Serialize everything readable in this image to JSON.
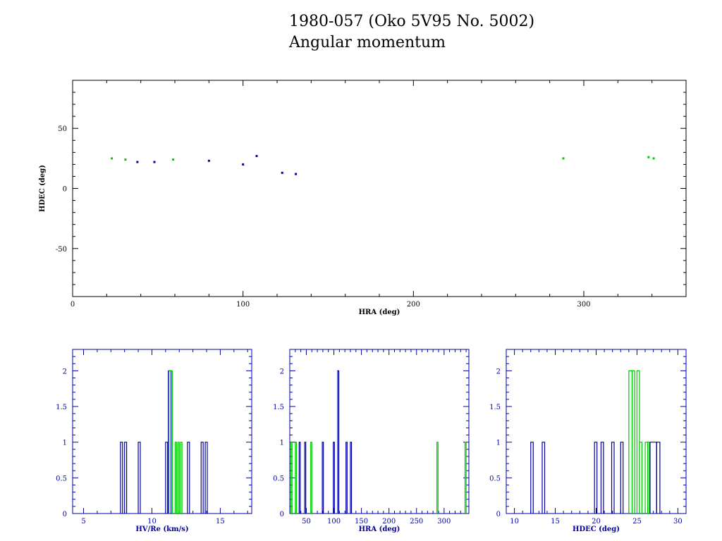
{
  "title_line1": "1980-057 (Oko 5V95 No. 5002)",
  "title_line2": "Angular momentum",
  "colors": {
    "blue": "#0000a0",
    "green": "#00c800",
    "black": "#000000"
  },
  "chart_data": [
    {
      "type": "scatter",
      "xlabel": "HRA (deg)",
      "ylabel": "HDEC (deg)",
      "xlim": [
        0,
        360
      ],
      "ylim": [
        -90,
        90
      ],
      "xticks": [
        0,
        100,
        200,
        300
      ],
      "yticks": [
        -50,
        0,
        50
      ],
      "series": [
        {
          "color": "green",
          "points": [
            [
              23,
              25
            ],
            [
              31,
              24
            ],
            [
              59,
              24
            ],
            [
              288,
              25
            ],
            [
              338,
              26
            ],
            [
              341,
              25
            ]
          ]
        },
        {
          "color": "blue",
          "points": [
            [
              38,
              22
            ],
            [
              48,
              22
            ],
            [
              80,
              23
            ],
            [
              100,
              20
            ],
            [
              108,
              27
            ],
            [
              123,
              13
            ],
            [
              131,
              12
            ]
          ]
        }
      ]
    },
    {
      "type": "histogram",
      "xlabel": "HV/Re (km/s)",
      "xlim": [
        4.2,
        17.3
      ],
      "ylim": [
        0,
        2.3
      ],
      "xticks": [
        5,
        10,
        15
      ],
      "yticks": [
        0,
        0.5,
        1,
        1.5,
        2
      ],
      "ytick_labels": [
        "0",
        "0.5",
        "1",
        "1.5",
        "2"
      ],
      "series": [
        {
          "color": "blue",
          "bins": [
            [
              7.7,
              7.85,
              1
            ],
            [
              8.0,
              8.15,
              1
            ],
            [
              9.0,
              9.15,
              1
            ],
            [
              11.0,
              11.15,
              1
            ],
            [
              11.2,
              11.4,
              2
            ],
            [
              12.6,
              12.75,
              1
            ],
            [
              13.6,
              13.75,
              1
            ],
            [
              13.9,
              14.05,
              1
            ]
          ]
        },
        {
          "color": "green",
          "bins": [
            [
              11.25,
              11.5,
              2
            ],
            [
              11.7,
              11.8,
              1
            ],
            [
              11.9,
              12.0,
              1
            ],
            [
              12.1,
              12.2,
              1
            ]
          ]
        }
      ]
    },
    {
      "type": "histogram",
      "xlabel": "HRA (deg)",
      "xlim": [
        20,
        345
      ],
      "ylim": [
        0,
        2.3
      ],
      "xticks": [
        50,
        100,
        150,
        200,
        250,
        300
      ],
      "yticks": [
        0,
        0.5,
        1,
        1.5,
        2
      ],
      "ytick_labels": [
        "0",
        "0.5",
        "1",
        "1.5",
        "2"
      ],
      "series": [
        {
          "color": "blue",
          "bins": [
            [
              37,
              39,
              1
            ],
            [
              47,
              49,
              1
            ],
            [
              79,
              81,
              1
            ],
            [
              99,
              101,
              1
            ],
            [
              107,
              109,
              2
            ],
            [
              122,
              124,
              1
            ],
            [
              130,
              132,
              1
            ]
          ]
        },
        {
          "color": "green",
          "bins": [
            [
              22,
              24,
              1
            ],
            [
              30,
              32,
              1
            ],
            [
              58,
              60,
              1
            ],
            [
              287,
              289,
              1
            ],
            [
              338,
              340,
              1
            ]
          ]
        }
      ]
    },
    {
      "type": "histogram",
      "xlabel": "HDEC (deg)",
      "xlim": [
        9,
        31
      ],
      "ylim": [
        0,
        2.3
      ],
      "xticks": [
        10,
        15,
        20,
        25,
        30
      ],
      "yticks": [
        0,
        0.5,
        1,
        1.5,
        2
      ],
      "ytick_labels": [
        "0",
        "0.5",
        "1",
        "1.5",
        "2"
      ],
      "series": [
        {
          "color": "blue",
          "bins": [
            [
              12.0,
              12.3,
              1
            ],
            [
              13.4,
              13.7,
              1
            ],
            [
              19.8,
              20.1,
              1
            ],
            [
              20.6,
              20.9,
              1
            ],
            [
              21.9,
              22.2,
              1
            ],
            [
              23.0,
              23.3,
              1
            ],
            [
              26.6,
              27.4,
              1
            ],
            [
              27.4,
              27.8,
              1
            ]
          ]
        },
        {
          "color": "green",
          "bins": [
            [
              24.0,
              24.4,
              2
            ],
            [
              24.4,
              24.7,
              2
            ],
            [
              25.0,
              25.3,
              2
            ],
            [
              25.3,
              25.6,
              1
            ],
            [
              26.0,
              26.3,
              1
            ],
            [
              26.3,
              26.5,
              1
            ]
          ]
        }
      ]
    }
  ]
}
